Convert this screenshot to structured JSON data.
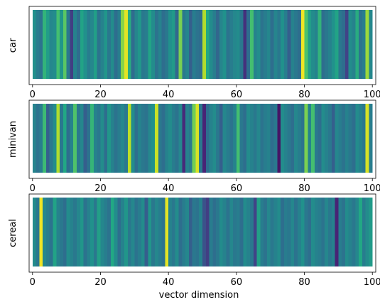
{
  "chart_data": {
    "type": "heatmap",
    "description_of_encoding": "",
    "xlabel": "vector dimension",
    "x_ticks": [
      0,
      20,
      40,
      60,
      80,
      100
    ],
    "xlim": [
      -1,
      101
    ],
    "colormap": "viridis",
    "panels": [
      {
        "ylabel": "car",
        "values": [
          0.5,
          0.42,
          0.38,
          0.65,
          0.55,
          0.46,
          0.48,
          0.7,
          0.52,
          0.74,
          0.4,
          0.18,
          0.44,
          0.36,
          0.58,
          0.5,
          0.42,
          0.46,
          0.56,
          0.38,
          0.44,
          0.52,
          0.4,
          0.48,
          0.36,
          0.42,
          0.82,
          0.96,
          0.62,
          0.35,
          0.45,
          0.52,
          0.4,
          0.42,
          0.58,
          0.48,
          0.38,
          0.44,
          0.36,
          0.4,
          0.5,
          0.54,
          0.34,
          0.8,
          0.4,
          0.45,
          0.3,
          0.42,
          0.38,
          0.36,
          0.88,
          0.6,
          0.48,
          0.42,
          0.33,
          0.45,
          0.5,
          0.38,
          0.42,
          0.46,
          0.48,
          0.4,
          0.14,
          0.36,
          0.7,
          0.44,
          0.48,
          0.38,
          0.42,
          0.46,
          0.36,
          0.45,
          0.4,
          0.5,
          0.42,
          0.3,
          0.44,
          0.4,
          0.36,
          0.98,
          0.72,
          0.55,
          0.48,
          0.44,
          0.65,
          0.36,
          0.4,
          0.44,
          0.5,
          0.58,
          0.4,
          0.36,
          0.2,
          0.48,
          0.44,
          0.62,
          0.38,
          0.42,
          0.85,
          0.46
        ]
      },
      {
        "ylabel": "minivan",
        "values": [
          0.45,
          0.38,
          0.42,
          0.68,
          0.3,
          0.4,
          0.48,
          0.88,
          0.4,
          0.6,
          0.36,
          0.44,
          0.72,
          0.4,
          0.46,
          0.3,
          0.38,
          0.66,
          0.44,
          0.4,
          0.48,
          0.36,
          0.52,
          0.44,
          0.38,
          0.42,
          0.46,
          0.4,
          0.9,
          0.48,
          0.36,
          0.44,
          0.4,
          0.38,
          0.46,
          0.5,
          0.92,
          0.4,
          0.36,
          0.44,
          0.48,
          0.42,
          0.38,
          0.46,
          0.12,
          0.44,
          0.4,
          0.78,
          0.94,
          0.4,
          0.1,
          0.36,
          0.44,
          0.48,
          0.4,
          0.3,
          0.46,
          0.42,
          0.38,
          0.44,
          0.7,
          0.4,
          0.36,
          0.48,
          0.44,
          0.4,
          0.46,
          0.38,
          0.42,
          0.44,
          0.36,
          0.4,
          0.05,
          0.48,
          0.44,
          0.4,
          0.36,
          0.46,
          0.42,
          0.38,
          0.8,
          0.44,
          0.7,
          0.4,
          0.36,
          0.48,
          0.44,
          0.4,
          0.3,
          0.46,
          0.42,
          0.38,
          0.44,
          0.4,
          0.36,
          0.48,
          0.44,
          0.4,
          0.94,
          0.42
        ]
      },
      {
        "ylabel": "cereal",
        "values": [
          0.48,
          0.4,
          0.98,
          0.46,
          0.42,
          0.38,
          0.58,
          0.44,
          0.4,
          0.36,
          0.48,
          0.44,
          0.4,
          0.46,
          0.52,
          0.38,
          0.44,
          0.5,
          0.4,
          0.56,
          0.46,
          0.42,
          0.38,
          0.6,
          0.48,
          0.36,
          0.44,
          0.52,
          0.4,
          0.46,
          0.38,
          0.42,
          0.48,
          0.3,
          0.52,
          0.4,
          0.46,
          0.42,
          0.38,
          0.96,
          0.44,
          0.4,
          0.48,
          0.36,
          0.42,
          0.46,
          0.3,
          0.4,
          0.38,
          0.44,
          0.25,
          0.18,
          0.42,
          0.36,
          0.4,
          0.48,
          0.44,
          0.38,
          0.46,
          0.4,
          0.42,
          0.36,
          0.48,
          0.44,
          0.4,
          0.2,
          0.56,
          0.42,
          0.38,
          0.46,
          0.4,
          0.44,
          0.48,
          0.36,
          0.42,
          0.4,
          0.46,
          0.38,
          0.44,
          0.5,
          0.4,
          0.36,
          0.48,
          0.44,
          0.42,
          0.38,
          0.46,
          0.4,
          0.44,
          0.1,
          0.42,
          0.38,
          0.48,
          0.44,
          0.4,
          0.46,
          0.6,
          0.42,
          0.48,
          0.54
        ]
      }
    ]
  }
}
